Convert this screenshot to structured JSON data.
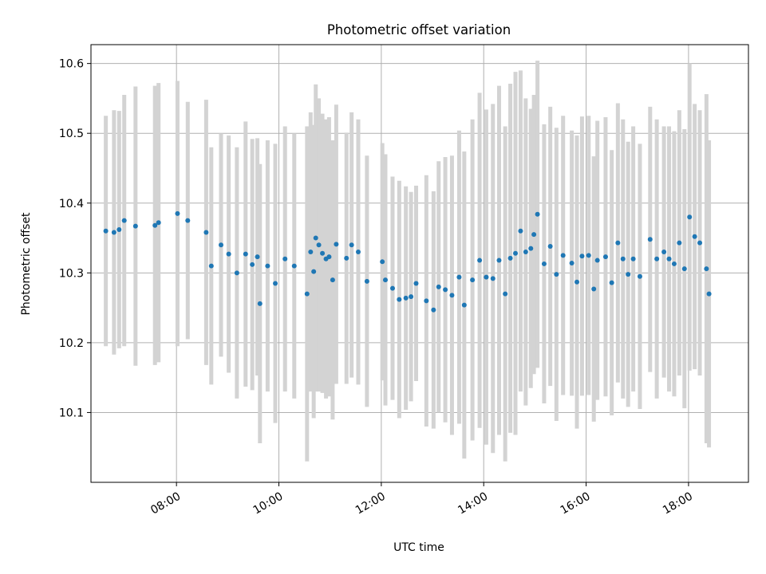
{
  "chart_data": {
    "type": "scatter",
    "title": "Photometric offset variation",
    "xlabel": "UTC time",
    "ylabel": "Photometric offset",
    "grid": true,
    "legend": "none",
    "x_unit": "hours UTC",
    "xlim": [
      6.33,
      19.17
    ],
    "ylim": [
      10.0,
      10.627
    ],
    "x_ticks": [
      {
        "value": 8,
        "label": "08:00"
      },
      {
        "value": 10,
        "label": "10:00"
      },
      {
        "value": 12,
        "label": "12:00"
      },
      {
        "value": 14,
        "label": "14:00"
      },
      {
        "value": 16,
        "label": "16:00"
      },
      {
        "value": 18,
        "label": "18:00"
      }
    ],
    "y_ticks": [
      {
        "value": 10.1,
        "label": "10.1"
      },
      {
        "value": 10.2,
        "label": "10.2"
      },
      {
        "value": 10.3,
        "label": "10.3"
      },
      {
        "value": 10.4,
        "label": "10.4"
      },
      {
        "value": 10.5,
        "label": "10.5"
      },
      {
        "value": 10.6,
        "label": "10.6"
      }
    ],
    "colors": {
      "points": "#1f77b4",
      "errorbars": "#d3d3d3",
      "grid": "#b0b0b0"
    },
    "series": [
      {
        "x": [
          6.62,
          6.78,
          6.88,
          6.98,
          7.2,
          7.58,
          7.65,
          8.02,
          8.22,
          8.58,
          8.68,
          8.87,
          9.02,
          9.18,
          9.35,
          9.48,
          9.58,
          9.63,
          9.78,
          9.93,
          10.12,
          10.3,
          10.55,
          10.62,
          10.68,
          10.72,
          10.78,
          10.85,
          10.92,
          10.98,
          11.05,
          11.12,
          11.32,
          11.42,
          11.55,
          11.72,
          12.02,
          12.08,
          12.22,
          12.35,
          12.48,
          12.58,
          12.68,
          12.88,
          13.02,
          13.12,
          13.25,
          13.38,
          13.52,
          13.62,
          13.78,
          13.92,
          14.05,
          14.18,
          14.3,
          14.42,
          14.52,
          14.62,
          14.72,
          14.82,
          14.92,
          14.98,
          15.05,
          15.18,
          15.3,
          15.42,
          15.55,
          15.72,
          15.82,
          15.92,
          16.05,
          16.15,
          16.22,
          16.38,
          16.5,
          16.62,
          16.72,
          16.82,
          16.92,
          17.05,
          17.25,
          17.38,
          17.52,
          17.62,
          17.72,
          17.82,
          17.92,
          18.02,
          18.12,
          18.22,
          18.35,
          18.4
        ],
        "y": [
          10.36,
          10.358,
          10.362,
          10.375,
          10.367,
          10.368,
          10.372,
          10.385,
          10.375,
          10.358,
          10.31,
          10.34,
          10.327,
          10.3,
          10.327,
          10.312,
          10.323,
          10.256,
          10.31,
          10.285,
          10.32,
          10.31,
          10.27,
          10.33,
          10.302,
          10.35,
          10.34,
          10.328,
          10.32,
          10.323,
          10.29,
          10.341,
          10.321,
          10.34,
          10.33,
          10.288,
          10.316,
          10.29,
          10.278,
          10.262,
          10.264,
          10.266,
          10.285,
          10.26,
          10.247,
          10.28,
          10.276,
          10.268,
          10.294,
          10.254,
          10.29,
          10.318,
          10.294,
          10.292,
          10.318,
          10.27,
          10.321,
          10.328,
          10.36,
          10.33,
          10.335,
          10.355,
          10.384,
          10.313,
          10.338,
          10.298,
          10.325,
          10.314,
          10.287,
          10.324,
          10.325,
          10.277,
          10.318,
          10.323,
          10.286,
          10.343,
          10.32,
          10.298,
          10.32,
          10.295,
          10.348,
          10.32,
          10.33,
          10.32,
          10.313,
          10.343,
          10.306,
          10.38,
          10.352,
          10.343,
          10.306,
          10.27
        ],
        "err": [
          0.165,
          0.175,
          0.17,
          0.18,
          0.2,
          0.2,
          0.2,
          0.19,
          0.17,
          0.19,
          0.17,
          0.16,
          0.17,
          0.18,
          0.19,
          0.18,
          0.17,
          0.2,
          0.18,
          0.2,
          0.19,
          0.19,
          0.24,
          0.2,
          0.21,
          0.22,
          0.21,
          0.2,
          0.2,
          0.2,
          0.2,
          0.2,
          0.18,
          0.19,
          0.19,
          0.18,
          0.17,
          0.18,
          0.16,
          0.17,
          0.16,
          0.15,
          0.14,
          0.18,
          0.17,
          0.18,
          0.19,
          0.2,
          0.21,
          0.22,
          0.23,
          0.24,
          0.24,
          0.25,
          0.25,
          0.24,
          0.25,
          0.26,
          0.23,
          0.22,
          0.2,
          0.2,
          0.22,
          0.2,
          0.2,
          0.21,
          0.2,
          0.19,
          0.21,
          0.2,
          0.2,
          0.19,
          0.2,
          0.2,
          0.19,
          0.2,
          0.2,
          0.19,
          0.19,
          0.19,
          0.19,
          0.2,
          0.18,
          0.19,
          0.19,
          0.19,
          0.2,
          0.22,
          0.19,
          0.19,
          0.25,
          0.22
        ]
      }
    ]
  }
}
